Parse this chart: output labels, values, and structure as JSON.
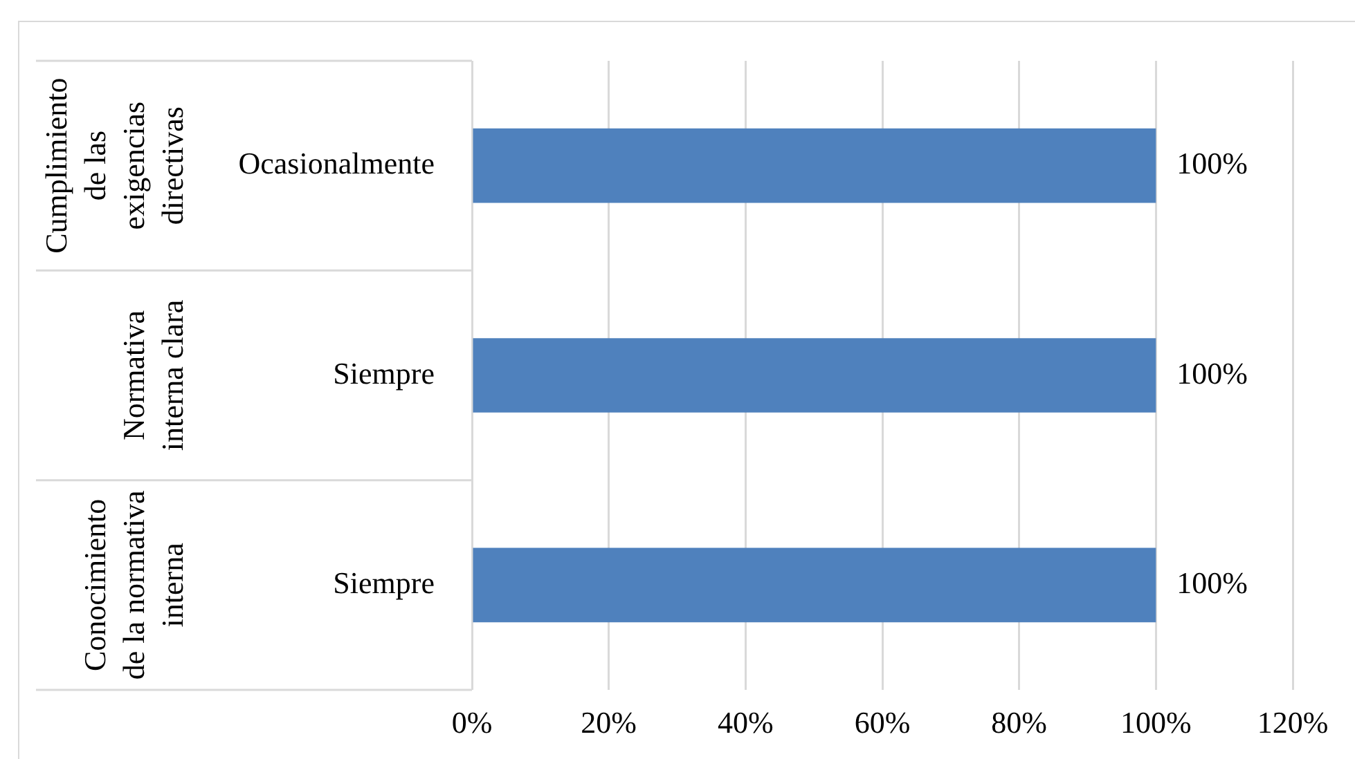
{
  "chart_data": {
    "type": "bar",
    "orientation": "horizontal",
    "categories": [
      "Ocasionalmente",
      "Siempre",
      "Siempre"
    ],
    "values": [
      100,
      100,
      100
    ],
    "color": "#4f81bd",
    "value_labels": [
      "100%",
      "100%",
      "100%"
    ],
    "annotations": [
      "Cumplimiento de las exigencias directivas",
      "Normativa interna clara",
      "Conocimiento de la normativa interna"
    ],
    "xlim": [
      0,
      120
    ],
    "xticks": [
      {
        "value": 0,
        "label": "0%"
      },
      {
        "value": 20,
        "label": "20%"
      },
      {
        "value": 40,
        "label": "40%"
      },
      {
        "value": 60,
        "label": "60%"
      },
      {
        "value": 80,
        "label": "80%"
      },
      {
        "value": 100,
        "label": "100%"
      },
      {
        "value": 120,
        "label": "120%"
      }
    ],
    "grid": "x",
    "legend": false
  }
}
